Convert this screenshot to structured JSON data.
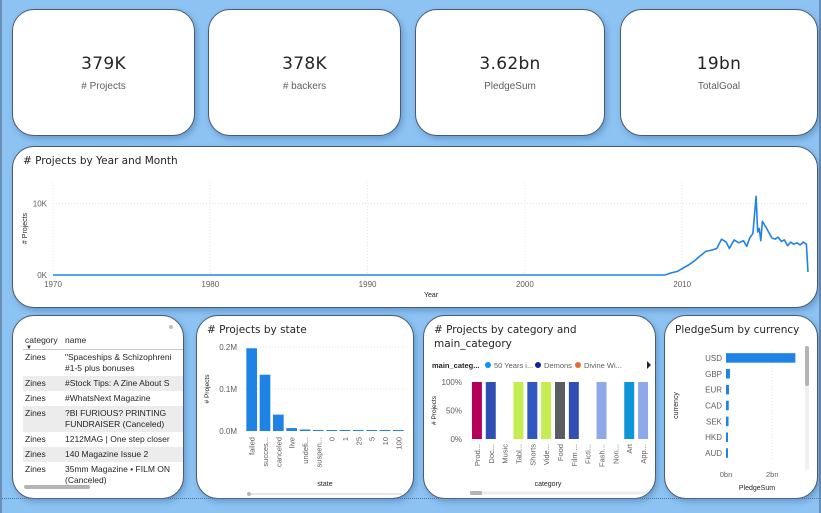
{
  "kpis": [
    {
      "value": "379K",
      "label": "# Projects"
    },
    {
      "value": "378K",
      "label": "# backers"
    },
    {
      "value": "3.62bn",
      "label": "PledgeSum"
    },
    {
      "value": "19bn",
      "label": "TotalGoal"
    }
  ],
  "colors": {
    "background": "#8cc3f2",
    "accent": "#1f83e6",
    "card": "#ffffff"
  },
  "table": {
    "headers": [
      "category",
      "name"
    ],
    "sort_icon": "sort-down-icon",
    "rows": [
      {
        "category": "Zines",
        "name": "\"Spaceships & Schizophreni",
        "name2": "#1-5 plus bonuses"
      },
      {
        "category": "Zines",
        "name": "#Stock Tips: A Zine About S",
        "name2": ""
      },
      {
        "category": "Zines",
        "name": "#WhatsNext Magazine",
        "name2": ""
      },
      {
        "category": "Zines",
        "name": "?BI FURIOUS? PRINTING",
        "name2": "FUNDRAISER (Canceled)"
      },
      {
        "category": "Zines",
        "name": "1212MAG | One step closer",
        "name2": ""
      },
      {
        "category": "Zines",
        "name": "140 Magazine Issue 2",
        "name2": ""
      },
      {
        "category": "Zines",
        "name": "35mm Magazine • FILM ON",
        "name2": "(Canceled)"
      }
    ]
  },
  "chart_data": [
    {
      "type": "line",
      "title": "# Projects by Year and Month",
      "xlabel": "Year",
      "ylabel": "# Projects",
      "x_ticks": [
        "1970",
        "1980",
        "1990",
        "2000",
        "2010"
      ],
      "y_ticks": [
        "0K",
        "10K"
      ],
      "xlim": [
        1970,
        2018
      ],
      "ylim": [
        0,
        13000
      ],
      "grid": true,
      "x": [
        1970,
        2008.9,
        2009.3,
        2009.7,
        2010.0,
        2010.4,
        2010.8,
        2011.1,
        2011.5,
        2011.9,
        2012.2,
        2012.5,
        2012.8,
        2013.0,
        2013.3,
        2013.6,
        2013.9,
        2014.1,
        2014.3,
        2014.5,
        2014.7,
        2014.8,
        2014.9,
        2015.0,
        2015.1,
        2015.3,
        2015.5,
        2015.7,
        2015.9,
        2016.1,
        2016.3,
        2016.5,
        2016.7,
        2016.9,
        2017.1,
        2017.3,
        2017.5,
        2017.7,
        2017.9,
        2018.0
      ],
      "y": [
        0,
        0,
        300,
        500,
        900,
        1400,
        2000,
        2600,
        3300,
        3500,
        3700,
        5000,
        4600,
        3700,
        4900,
        4500,
        4800,
        4000,
        5200,
        5800,
        11000,
        6000,
        6500,
        4800,
        7500,
        6800,
        6000,
        5200,
        5000,
        5300,
        4700,
        4900,
        4100,
        4600,
        4300,
        4500,
        4200,
        4600,
        4300,
        400
      ]
    },
    {
      "type": "bar",
      "title": "# Projects by state",
      "xlabel": "state",
      "ylabel": "# Projects",
      "categories": [
        "failed",
        "succes...",
        "canceled",
        "live",
        "undefi...",
        "suspen...",
        "0",
        "1",
        "25",
        "5",
        "10",
        "100"
      ],
      "values": [
        197000,
        134000,
        39000,
        7000,
        3500,
        1800,
        800,
        600,
        500,
        400,
        300,
        200
      ],
      "y_ticks": [
        "0.0M",
        "0.1M",
        "0.2M"
      ],
      "ylim": [
        0,
        200000
      ]
    },
    {
      "type": "bar",
      "title": "# Projects by category and main_category",
      "xlabel": "category",
      "ylabel": "# Projects",
      "legend_title": "main_categ...",
      "legend": [
        {
          "name": "50 Years i...",
          "color": "#118dff"
        },
        {
          "name": "Demons",
          "color": "#12239e"
        },
        {
          "name": "Divine Wi...",
          "color": "#e66c37"
        }
      ],
      "categories": [
        "Prod...",
        "Doc...",
        "Music",
        "Tabl...",
        "Shorts",
        "Vide...",
        "Food",
        "Film ...",
        "Ficti...",
        "Fash...",
        "Non...",
        "Art",
        "App..."
      ],
      "values": [
        100,
        100,
        0,
        100,
        100,
        100,
        100,
        100,
        0,
        100,
        0,
        100,
        100
      ],
      "bar_colors": [
        "#b3005c",
        "#2f4fb5",
        "#ffffff",
        "#c5ec50",
        "#3158c0",
        "#c5ec50",
        "#5a5e63",
        "#2f4fb5",
        "#ffffff",
        "#8fa8e8",
        "#ffffff",
        "#0f96d8",
        "#8fa8e8"
      ],
      "y_ticks": [
        "0%",
        "50%",
        "100%"
      ],
      "ylim": [
        0,
        100
      ]
    },
    {
      "type": "bar",
      "orientation": "horizontal",
      "title": "PledgeSum by currency",
      "xlabel": "PledgeSum",
      "ylabel": "currency",
      "categories": [
        "USD",
        "GBP",
        "EUR",
        "CAD",
        "SEK",
        "HKD",
        "AUD"
      ],
      "values": [
        3000000000,
        170000000,
        130000000,
        120000000,
        110000000,
        60000000,
        50000000
      ],
      "x_ticks": [
        "0bn",
        "2bn"
      ],
      "xlim": [
        0,
        3200000000
      ]
    }
  ]
}
